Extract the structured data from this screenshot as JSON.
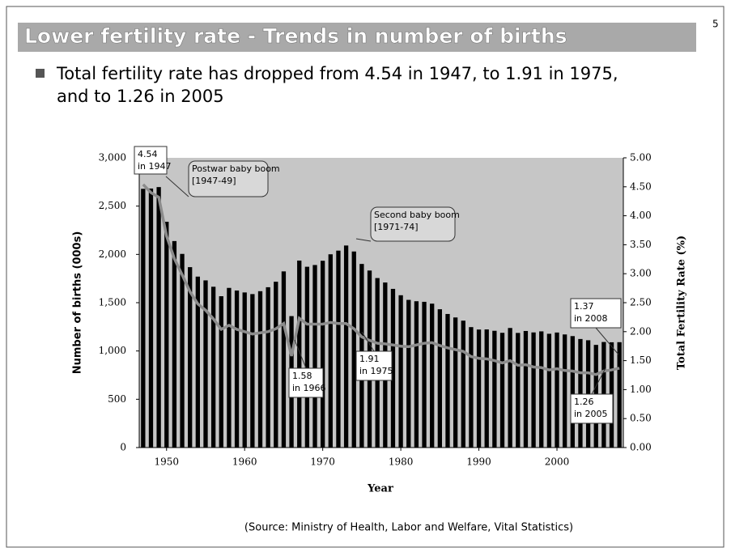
{
  "slide": {
    "title": "Lower fertility rate - Trends in number of births",
    "page": "5",
    "bullet": [
      "Total fertility rate has dropped from 4.54 in 1947, to 1.91 in 1975,",
      "and to 1.26 in 2005"
    ],
    "source": "(Source: Ministry of Health, Labor and Welfare, Vital Statistics)"
  },
  "chart_data": {
    "type": "bar-line",
    "x_label": "Year",
    "y_label": "Number of births (000s)",
    "y2_label": "Total Fertility Rate (%)",
    "x": [
      1947,
      1948,
      1949,
      1950,
      1951,
      1952,
      1953,
      1954,
      1955,
      1956,
      1957,
      1958,
      1959,
      1960,
      1961,
      1962,
      1963,
      1964,
      1965,
      1966,
      1967,
      1968,
      1969,
      1970,
      1971,
      1972,
      1973,
      1974,
      1975,
      1976,
      1977,
      1978,
      1979,
      1980,
      1981,
      1982,
      1983,
      1984,
      1985,
      1986,
      1987,
      1988,
      1989,
      1990,
      1991,
      1992,
      1993,
      1994,
      1995,
      1996,
      1997,
      1998,
      1999,
      2000,
      2001,
      2002,
      2003,
      2004,
      2005,
      2006,
      2007,
      2008
    ],
    "series": [
      {
        "name": "Number of births",
        "color": "#000000",
        "values": [
          2679,
          2682,
          2697,
          2338,
          2138,
          2005,
          1868,
          1770,
          1731,
          1665,
          1567,
          1653,
          1626,
          1606,
          1589,
          1619,
          1660,
          1717,
          1824,
          1361,
          1936,
          1872,
          1890,
          1934,
          2001,
          2039,
          2092,
          2030,
          1901,
          1833,
          1755,
          1709,
          1643,
          1577,
          1529,
          1515,
          1509,
          1490,
          1432,
          1383,
          1347,
          1314,
          1247,
          1222,
          1223,
          1209,
          1188,
          1238,
          1187,
          1207,
          1192,
          1203,
          1178,
          1191,
          1171,
          1154,
          1124,
          1111,
          1063,
          1093,
          1090,
          1091
        ]
      },
      {
        "name": "Total Fertility Rate",
        "color": "#8c8c8c",
        "axis": "y2",
        "values": [
          4.54,
          4.4,
          4.32,
          3.65,
          3.26,
          2.98,
          2.69,
          2.48,
          2.37,
          2.22,
          2.04,
          2.11,
          2.04,
          2.0,
          1.96,
          1.98,
          2.0,
          2.05,
          2.14,
          1.58,
          2.23,
          2.13,
          2.13,
          2.13,
          2.16,
          2.14,
          2.14,
          2.05,
          1.91,
          1.85,
          1.8,
          1.79,
          1.77,
          1.75,
          1.74,
          1.77,
          1.8,
          1.81,
          1.76,
          1.72,
          1.69,
          1.66,
          1.57,
          1.54,
          1.53,
          1.5,
          1.46,
          1.5,
          1.42,
          1.43,
          1.39,
          1.38,
          1.34,
          1.36,
          1.33,
          1.32,
          1.29,
          1.29,
          1.26,
          1.32,
          1.34,
          1.37
        ]
      }
    ],
    "xlim": [
      1946.5,
      2008.5
    ],
    "xticks": [
      1950,
      1960,
      1970,
      1980,
      1990,
      2000
    ],
    "ylim": [
      0,
      3000
    ],
    "yticks": [
      0,
      500,
      {
        "value": 1000,
        "label": "1,000"
      },
      {
        "value": 1500,
        "label": "1,500"
      },
      {
        "value": 2000,
        "label": "2,000"
      },
      {
        "value": 2500,
        "label": "2,500"
      },
      {
        "value": 3000,
        "label": "3,000"
      }
    ],
    "y2lim": [
      0,
      5
    ],
    "y2ticks": [
      {
        "value": 0,
        "label": "0.00"
      },
      {
        "value": 0.5,
        "label": "0.50"
      },
      {
        "value": 1,
        "label": "1.00"
      },
      {
        "value": 1.5,
        "label": "1.50"
      },
      {
        "value": 2,
        "label": "2.00"
      },
      {
        "value": 2.5,
        "label": "2.50"
      },
      {
        "value": 3,
        "label": "3.00"
      },
      {
        "value": 3.5,
        "label": "3.50"
      },
      {
        "value": 4,
        "label": "4.00"
      },
      {
        "value": 4.5,
        "label": "4.50"
      },
      {
        "value": 5,
        "label": "5.00"
      }
    ],
    "annotations": [
      [
        "4.54",
        "in 1947"
      ],
      [
        "Postwar baby boom",
        "[1947-49]"
      ],
      [
        "Second baby boom",
        "[1971-74]"
      ],
      [
        "1.58",
        "in 1966"
      ],
      [
        "1.91",
        "in 1975"
      ],
      [
        "1.37",
        "in 2008"
      ],
      [
        "1.26",
        "in 2005"
      ]
    ]
  }
}
